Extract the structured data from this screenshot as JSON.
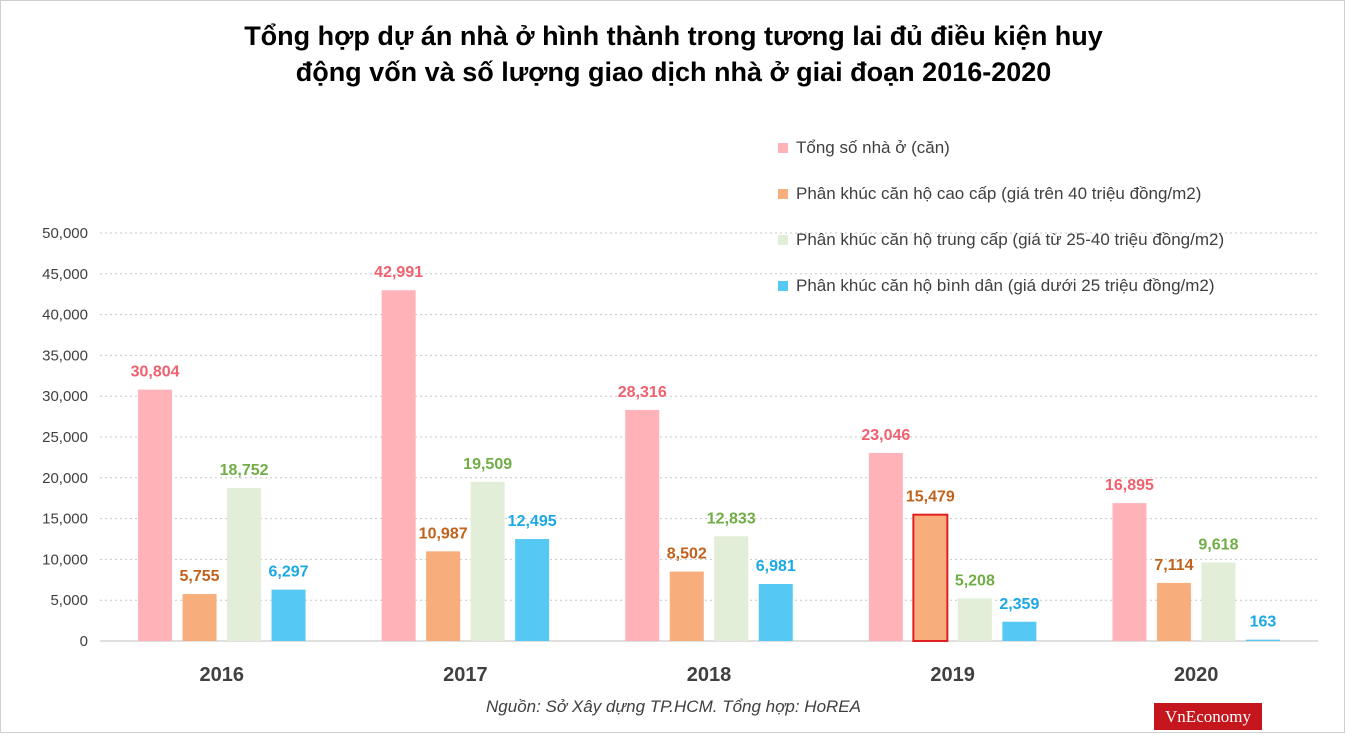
{
  "chart_data": {
    "type": "bar",
    "title_lines": [
      "Tổng hợp dự án nhà ở hình thành trong tương lai đủ điều kiện huy",
      "động vốn và số lượng giao dịch nhà ở giai đoạn 2016-2020"
    ],
    "categories": [
      "2016",
      "2017",
      "2018",
      "2019",
      "2020"
    ],
    "series": [
      {
        "name": "Tổng số nhà ở (căn)",
        "color": "#ffb3b8",
        "label_color": "#f0606e",
        "values": [
          30804,
          42991,
          28316,
          23046,
          16895
        ],
        "labels": [
          "30,804",
          "42,991",
          "28,316",
          "23,046",
          "16,895"
        ]
      },
      {
        "name": "Phân khúc căn hộ cao cấp (giá trên 40 triệu đồng/m2)",
        "color": "#f8ad7c",
        "label_color": "#c0621c",
        "values": [
          5755,
          10987,
          8502,
          15479,
          7114
        ],
        "labels": [
          "5,755",
          "10,987",
          "8,502",
          "15,479",
          "7,114"
        ]
      },
      {
        "name": "Phân khúc căn hộ trung cấp (giá từ 25-40 triệu đồng/m2)",
        "color": "#e2eed8",
        "label_color": "#70ad47",
        "values": [
          18752,
          19509,
          12833,
          5208,
          9618
        ],
        "labels": [
          "18,752",
          "19,509",
          "12,833",
          "5,208",
          "9,618"
        ]
      },
      {
        "name": "Phân khúc căn hộ bình dân (giá dưới 25 triệu đồng/m2)",
        "color": "#55c8f4",
        "label_color": "#1ba9e6",
        "values": [
          6297,
          12495,
          6981,
          2359,
          163
        ],
        "labels": [
          "6,297",
          "12,495",
          "6,981",
          "2,359",
          "163"
        ]
      }
    ],
    "highlight": {
      "category": "2019",
      "series": 1,
      "outline_color": "#e02020"
    },
    "y_ticks": [
      "0",
      "5,000",
      "10,000",
      "15,000",
      "20,000",
      "25,000",
      "30,000",
      "35,000",
      "40,000",
      "45,000",
      "50,000"
    ],
    "ylim": [
      0,
      50000
    ],
    "grid": true,
    "legend_position": "top-right",
    "source_text": "Nguồn: Sở Xây dựng TP.HCM. Tổng hợp: HoREA"
  },
  "branding": {
    "logo_text": "VnEconomy",
    "logo_color": "#c4161c"
  }
}
